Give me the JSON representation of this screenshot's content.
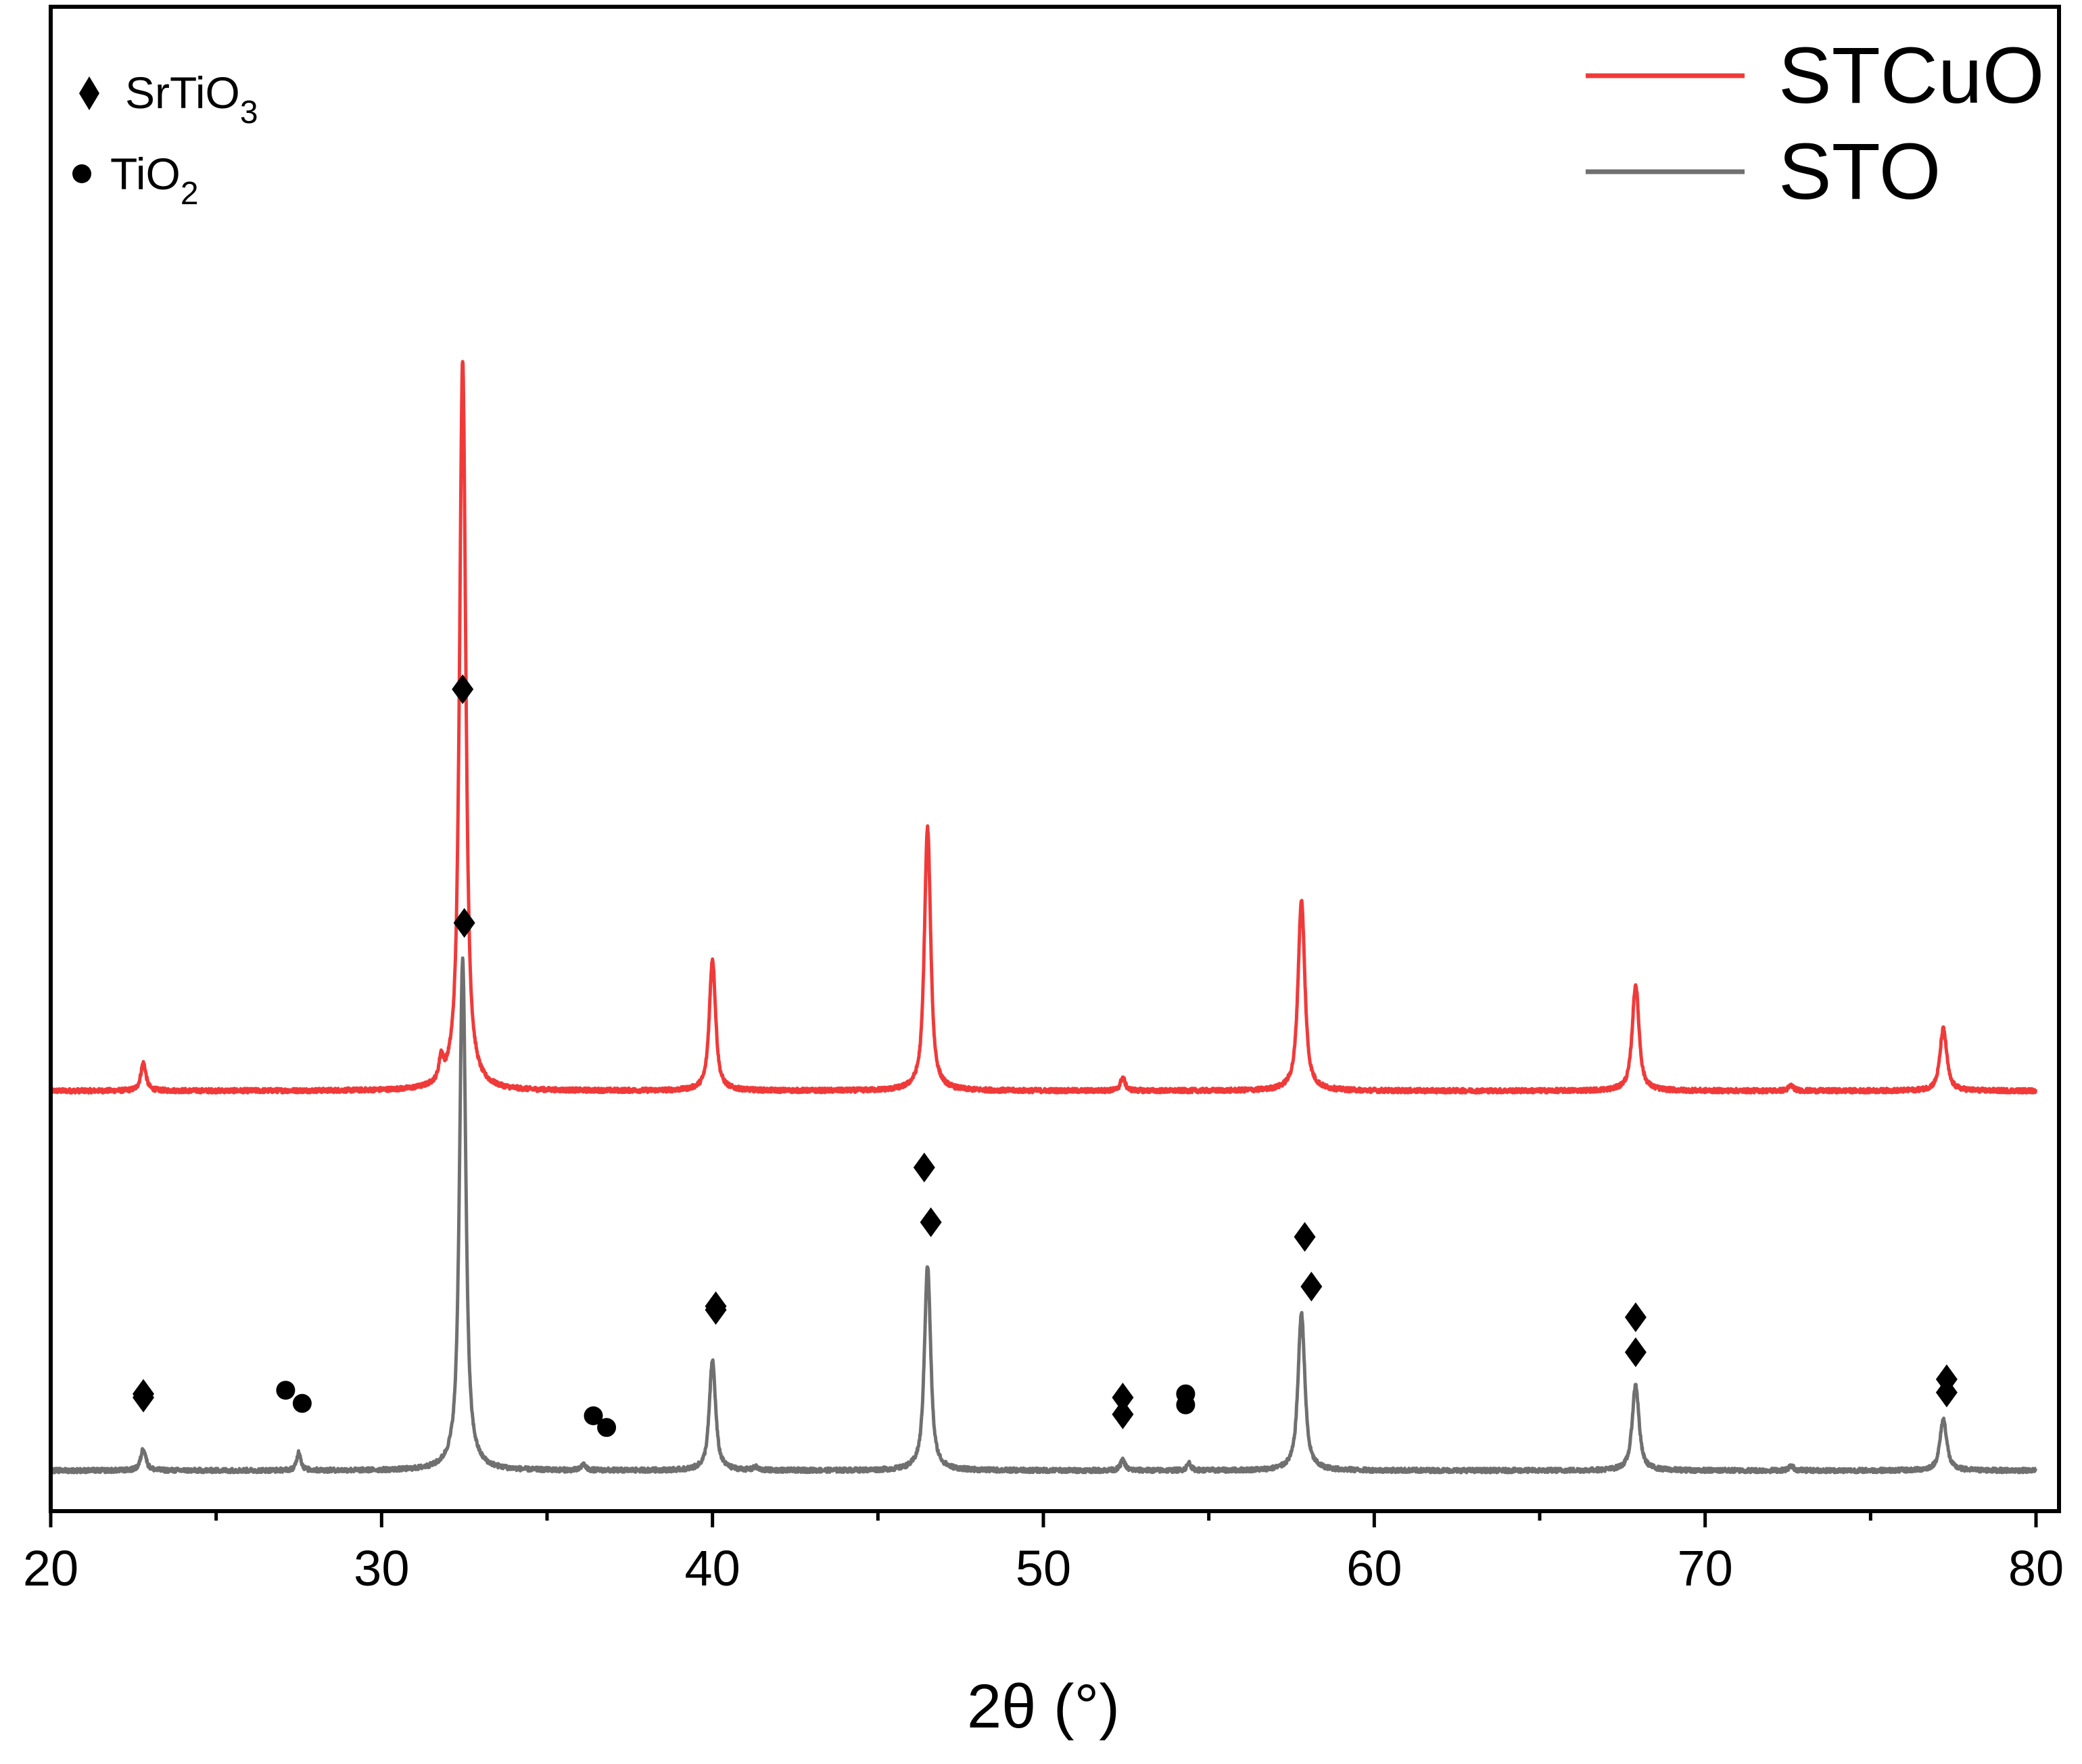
{
  "chart_data": {
    "type": "line",
    "title": "",
    "xlabel": "2θ (°)",
    "ylabel": "",
    "xlim": [
      20,
      80
    ],
    "xticks": [
      20,
      30,
      40,
      50,
      60,
      70,
      80
    ],
    "xtick_labels": [
      "20",
      "30",
      "40",
      "50",
      "60",
      "70",
      "80"
    ],
    "y_axis_shown": false,
    "grid": false,
    "legend": {
      "position": "top-right",
      "entries": [
        {
          "name": "STCuO",
          "color": "#f03a3a"
        },
        {
          "name": "STO",
          "color": "#707070"
        }
      ]
    },
    "phase_legend": {
      "position": "top-left",
      "entries": [
        {
          "marker": "diamond",
          "label": "SrTiO",
          "subscript": "3"
        },
        {
          "marker": "circle",
          "label": "TiO",
          "subscript": "2"
        }
      ]
    },
    "series": [
      {
        "name": "STCuO",
        "color": "#f03a3a",
        "baseline": 0.52,
        "noise": 0.003,
        "peaks": [
          {
            "x": 22.8,
            "height": 0.038,
            "width": 0.1
          },
          {
            "x": 31.8,
            "height": 0.03,
            "width": 0.08
          },
          {
            "x": 32.45,
            "height": 1.0,
            "width": 0.12
          },
          {
            "x": 40.0,
            "height": 0.18,
            "width": 0.12
          },
          {
            "x": 46.5,
            "height": 0.36,
            "width": 0.12
          },
          {
            "x": 52.4,
            "height": 0.018,
            "width": 0.09
          },
          {
            "x": 57.8,
            "height": 0.26,
            "width": 0.13
          },
          {
            "x": 67.9,
            "height": 0.145,
            "width": 0.13
          },
          {
            "x": 72.6,
            "height": 0.007,
            "width": 0.1
          },
          {
            "x": 77.2,
            "height": 0.085,
            "width": 0.13
          }
        ],
        "markers": [
          {
            "x": 22.8,
            "type": "diamond",
            "y": 0.1
          },
          {
            "x": 27.1,
            "type": "circle",
            "y": 0.11
          },
          {
            "x": 32.45,
            "type": "diamond",
            "y": 1.07
          },
          {
            "x": 36.4,
            "type": "circle",
            "y": 0.075
          },
          {
            "x": 40.1,
            "type": "diamond",
            "y": 0.225
          },
          {
            "x": 46.4,
            "type": "diamond",
            "y": 0.415
          },
          {
            "x": 52.4,
            "type": "diamond",
            "y": 0.1
          },
          {
            "x": 54.3,
            "type": "circle",
            "y": 0.105
          },
          {
            "x": 57.9,
            "type": "diamond",
            "y": 0.32
          },
          {
            "x": 67.9,
            "type": "diamond",
            "y": 0.21
          },
          {
            "x": 77.3,
            "type": "diamond",
            "y": 0.125
          }
        ]
      },
      {
        "name": "STO",
        "color": "#707070",
        "baseline": 0.0,
        "noise": 0.003,
        "peaks": [
          {
            "x": 22.8,
            "height": 0.03,
            "width": 0.1
          },
          {
            "x": 27.5,
            "height": 0.025,
            "width": 0.08
          },
          {
            "x": 32.45,
            "height": 0.7,
            "width": 0.12
          },
          {
            "x": 36.1,
            "height": 0.008,
            "width": 0.08
          },
          {
            "x": 40.0,
            "height": 0.15,
            "width": 0.12
          },
          {
            "x": 41.3,
            "height": 0.004,
            "width": 0.08
          },
          {
            "x": 46.5,
            "height": 0.28,
            "width": 0.12
          },
          {
            "x": 52.4,
            "height": 0.014,
            "width": 0.09
          },
          {
            "x": 54.4,
            "height": 0.01,
            "width": 0.08
          },
          {
            "x": 57.8,
            "height": 0.215,
            "width": 0.13
          },
          {
            "x": 67.9,
            "height": 0.117,
            "width": 0.13
          },
          {
            "x": 72.6,
            "height": 0.006,
            "width": 0.1
          },
          {
            "x": 77.2,
            "height": 0.07,
            "width": 0.13
          }
        ],
        "markers": [
          {
            "x": 22.8,
            "type": "diamond",
            "y": 0.105
          },
          {
            "x": 27.6,
            "type": "circle",
            "y": 0.092
          },
          {
            "x": 32.5,
            "type": "diamond",
            "y": 0.75
          },
          {
            "x": 36.8,
            "type": "circle",
            "y": 0.059
          },
          {
            "x": 40.1,
            "type": "diamond",
            "y": 0.22
          },
          {
            "x": 46.6,
            "type": "diamond",
            "y": 0.34
          },
          {
            "x": 52.4,
            "type": "diamond",
            "y": 0.077
          },
          {
            "x": 54.3,
            "type": "circle",
            "y": 0.09
          },
          {
            "x": 58.1,
            "type": "diamond",
            "y": 0.252
          },
          {
            "x": 67.9,
            "type": "diamond",
            "y": 0.162
          },
          {
            "x": 77.3,
            "type": "diamond",
            "y": 0.107
          }
        ]
      }
    ]
  }
}
